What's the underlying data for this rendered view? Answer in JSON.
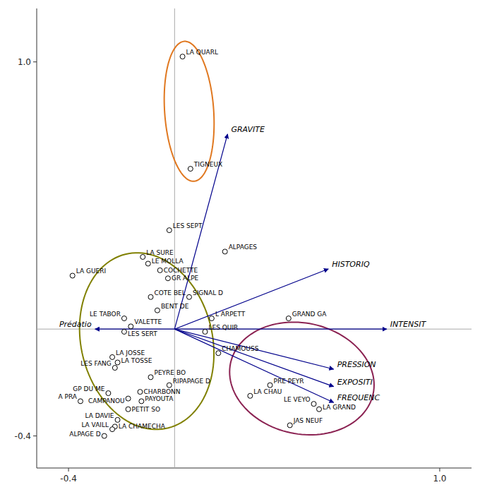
{
  "chart_data": {
    "type": "scatter",
    "point_labels": [
      "LA QUARL",
      "TIGNEUX",
      "LES SEPT",
      "LA SURE",
      "LE MOLLA",
      "COCHETTE",
      "GR ALPE",
      "LA GUERI",
      "ALPAGES",
      "COTE BEL",
      "SIGNAL D",
      "BENT DE",
      "LE TABOR",
      "VALETTE",
      "LES SERT",
      "L ARPETT",
      "LES QUIR",
      "CHAMOUSS",
      "GRAND GA",
      "LA JOSSE",
      "LA TOSSE",
      "LES FANG",
      "PEYRE BO",
      "RIPAPAGE D",
      "GP DU ME",
      "CHARBONN",
      "CAMPANOU",
      "PAYOUTA",
      "A PRA",
      "PETIT SO",
      "LA DAVIE",
      "LA CHAMECHA",
      "LA VAILL",
      "ALPAGE D",
      "PRE PEYR",
      "LA CHAU",
      "LE VEYO",
      "LA GRAND",
      "JAS NEUF"
    ],
    "x": [
      0.03,
      0.06,
      -0.02,
      -0.12,
      -0.1,
      -0.055,
      -0.025,
      -0.385,
      0.19,
      -0.09,
      0.055,
      -0.065,
      -0.19,
      -0.165,
      -0.19,
      0.14,
      0.115,
      0.165,
      0.43,
      -0.235,
      -0.215,
      -0.225,
      -0.09,
      -0.02,
      -0.25,
      -0.13,
      -0.175,
      -0.125,
      -0.355,
      -0.175,
      -0.215,
      -0.225,
      -0.235,
      -0.265,
      0.36,
      0.285,
      0.525,
      0.545,
      0.435
    ],
    "values": [
      1.02,
      0.6,
      0.37,
      0.27,
      0.245,
      0.22,
      0.19,
      0.2,
      0.29,
      0.12,
      0.12,
      0.07,
      0.04,
      0.01,
      -0.01,
      0.04,
      -0.01,
      -0.09,
      0.04,
      -0.105,
      -0.125,
      -0.145,
      -0.18,
      -0.21,
      -0.24,
      -0.235,
      -0.26,
      -0.27,
      -0.27,
      -0.3,
      -0.34,
      -0.365,
      -0.375,
      -0.4,
      -0.21,
      -0.25,
      -0.28,
      -0.3,
      -0.36
    ],
    "vectors": [
      {
        "label": "GRAVITE",
        "x": 0.2,
        "y": 0.73
      },
      {
        "label": "HISTORIQ",
        "x": 0.58,
        "y": 0.225
      },
      {
        "label": "INTENSIT",
        "x": 0.8,
        "y": 0.0
      },
      {
        "label": "Prédatio",
        "x": -0.3,
        "y": 0.0
      },
      {
        "label": "PRESSION",
        "x": 0.6,
        "y": -0.15
      },
      {
        "label": "EXPOSITI",
        "x": 0.6,
        "y": -0.215
      },
      {
        "label": "FREQUENC",
        "x": 0.6,
        "y": -0.275
      }
    ],
    "vector_color": "#00008B",
    "ellipses": [
      {
        "cx": 0.055,
        "cy": 0.815,
        "w": 0.185,
        "h": 0.525,
        "angle": 4,
        "color": "#E07820"
      },
      {
        "cx": -0.105,
        "cy": -0.045,
        "w": 0.495,
        "h": 0.67,
        "angle": 14,
        "color": "#808000"
      },
      {
        "cx": 0.48,
        "cy": -0.185,
        "w": 0.55,
        "h": 0.415,
        "angle": -12,
        "color": "#8B2252"
      }
    ],
    "reference_lines": [
      {
        "axis": "y",
        "value": 0
      },
      {
        "axis": "x",
        "value": 0
      }
    ],
    "xlim": [
      -0.52,
      1.12
    ],
    "ylim": [
      -0.52,
      1.2
    ],
    "xticks": [
      -0.4,
      {
        "value": 1.0,
        "label": "1.0"
      }
    ],
    "yticks": [
      -0.4,
      {
        "value": 1.0,
        "label": "1.0"
      }
    ]
  }
}
